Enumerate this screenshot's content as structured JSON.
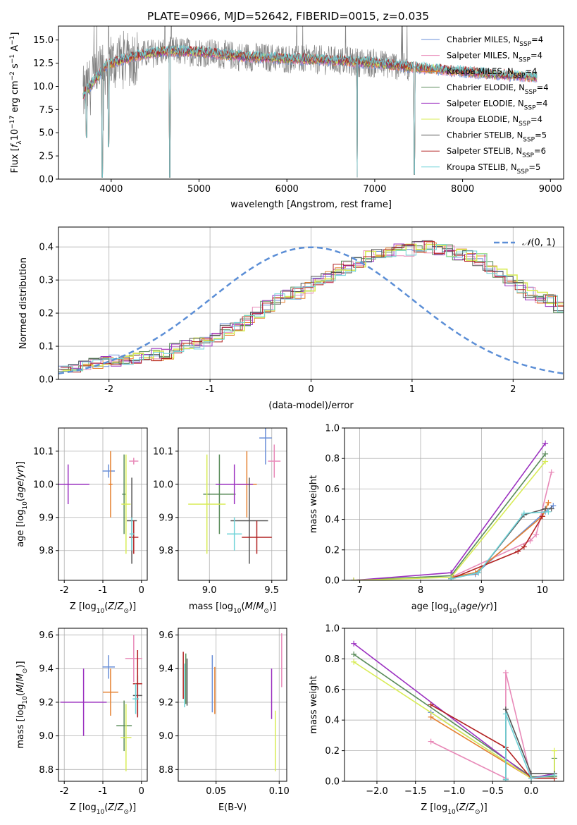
{
  "chart_data": [
    {
      "type": "line",
      "title": "PLATE=0966, MJD=52642, FIBERID=0015, z=0.035",
      "xlabel": "wavelength [Angstrom, rest frame]",
      "ylabel": "Flux [f_λ 10⁻¹⁷ erg cm⁻² s⁻¹ A⁻¹]",
      "xlim": [
        3400,
        9150
      ],
      "ylim": [
        0,
        16.5
      ],
      "xticks": [
        4000,
        5000,
        6000,
        7000,
        8000,
        9000
      ],
      "yticks": [
        0.0,
        2.5,
        5.0,
        7.5,
        10.0,
        12.5,
        15.0
      ],
      "ytick_labels": [
        "0.0",
        "2.5",
        "5.0",
        "7.5",
        "10.0",
        "12.5",
        "15.0"
      ],
      "legend_position": "upper-right",
      "series": [
        {
          "name": "Chabrier MILES, N_SSP=4",
          "color": "#6a8fd8"
        },
        {
          "name": "Salpeter MILES, N_SSP=4",
          "color": "#e889b8"
        },
        {
          "name": "Kroupa MILES, N_SSP=4",
          "color": "#e5802f"
        },
        {
          "name": "Chabrier ELODIE, N_SSP=4",
          "color": "#5a8c5a"
        },
        {
          "name": "Salpeter ELODIE, N_SSP=4",
          "color": "#9b30c0"
        },
        {
          "name": "Kroupa ELODIE, N_SSP=4",
          "color": "#d8ec55"
        },
        {
          "name": "Chabrier STELIB, N_SSP=5",
          "color": "#555555"
        },
        {
          "name": "Salpeter STELIB, N_SSP=6",
          "color": "#b22222"
        },
        {
          "name": "Kroupa STELIB, N_SSP=5",
          "color": "#6fd3d8"
        }
      ],
      "data_color": "#808080",
      "continuum_points": [
        [
          3680,
          9.0
        ],
        [
          3800,
          10.5
        ],
        [
          3950,
          12.3
        ],
        [
          4100,
          12.8
        ],
        [
          4300,
          13.3
        ],
        [
          4600,
          13.8
        ],
        [
          5000,
          13.7
        ],
        [
          5500,
          13.2
        ],
        [
          6000,
          13.0
        ],
        [
          6500,
          12.8
        ],
        [
          7000,
          12.5
        ],
        [
          7500,
          12.0
        ],
        [
          8000,
          11.6
        ],
        [
          8500,
          11.2
        ],
        [
          8850,
          11.0
        ]
      ],
      "data_noise_until": 7400,
      "dips": [
        [
          3720,
          4.5
        ],
        [
          3900,
          0.2
        ],
        [
          3970,
          3.5
        ],
        [
          4665,
          0.2
        ],
        [
          6800,
          0.2
        ],
        [
          7450,
          0.5
        ]
      ]
    },
    {
      "type": "line",
      "xlabel": "(data-model)/error",
      "ylabel": "Normed distribution",
      "xlim": [
        -2.5,
        2.5
      ],
      "ylim": [
        0,
        0.46
      ],
      "xticks": [
        -2,
        -1,
        0,
        1,
        2
      ],
      "yticks": [
        0.0,
        0.1,
        0.2,
        0.3,
        0.4
      ],
      "ytick_labels": [
        "0.0",
        "0.1",
        "0.2",
        "0.3",
        "0.4"
      ],
      "legend": "N(0,1)",
      "legend_position": "upper-right",
      "bin_width": 0.1,
      "hist_base": [
        0.03,
        0.035,
        0.04,
        0.045,
        0.05,
        0.055,
        0.06,
        0.065,
        0.07,
        0.075,
        0.08,
        0.09,
        0.1,
        0.11,
        0.12,
        0.13,
        0.15,
        0.165,
        0.18,
        0.2,
        0.22,
        0.24,
        0.25,
        0.26,
        0.28,
        0.3,
        0.31,
        0.33,
        0.34,
        0.35,
        0.37,
        0.38,
        0.38,
        0.39,
        0.39,
        0.4,
        0.4,
        0.39,
        0.39,
        0.38,
        0.37,
        0.36,
        0.34,
        0.32,
        0.3,
        0.28,
        0.26,
        0.25,
        0.24,
        0.22,
        0.2,
        0.18,
        0.16,
        0.15,
        0.13,
        0.12,
        0.11,
        0.1,
        0.09,
        0.08,
        0.07,
        0.06,
        0.055,
        0.05,
        0.045,
        0.04,
        0.04,
        0.035,
        0.03,
        0.03
      ]
    },
    {
      "type": "scatter",
      "xlabel": "Z [log₁₀(Z/Z⊙)]",
      "ylabel": "age  [log₁₀(age/yr)]",
      "xlim": [
        -2.15,
        0.15
      ],
      "ylim": [
        9.71,
        10.17
      ],
      "xticks": [
        -2,
        -1,
        0
      ],
      "yticks": [
        9.8,
        9.9,
        10.0,
        10.1
      ],
      "ytick_labels": [
        "9.8",
        "9.9",
        "10.0",
        "10.1"
      ],
      "points": [
        {
          "x": -0.85,
          "xerr": 0.16,
          "y": 10.04,
          "yerr": 0.02,
          "color": "#6a8fd8"
        },
        {
          "x": -0.2,
          "xerr": 0.12,
          "y": 10.07,
          "yerr": 0.01,
          "color": "#e889b8"
        },
        {
          "x": -0.8,
          "xerr": 0.05,
          "y": 10.0,
          "yerr": 0.1,
          "color": "#e5802f"
        },
        {
          "x": -0.45,
          "xerr": 0.05,
          "y": 9.97,
          "yerr": 0.12,
          "color": "#5a8c5a"
        },
        {
          "x": -1.9,
          "xerr": 0.55,
          "y": 10.0,
          "yerr": 0.06,
          "color": "#9b30c0"
        },
        {
          "x": -0.4,
          "xerr": 0.12,
          "y": 9.94,
          "yerr": 0.15,
          "color": "#d8ec55"
        },
        {
          "x": -0.25,
          "xerr": 0.13,
          "y": 9.89,
          "yerr": 0.13,
          "color": "#555555"
        },
        {
          "x": -0.2,
          "xerr": 0.12,
          "y": 9.84,
          "yerr": 0.05,
          "color": "#b22222"
        },
        {
          "x": -0.25,
          "xerr": 0.06,
          "y": 9.85,
          "yerr": 0.05,
          "color": "#6fd3d8"
        }
      ]
    },
    {
      "type": "scatter",
      "xlabel": "mass [log₁₀(M/M⊙)]",
      "xlim": [
        8.75,
        9.62
      ],
      "ylim": [
        9.71,
        10.17
      ],
      "xticks": [
        9.0,
        9.5
      ],
      "xtick_labels": [
        "9.0",
        "9.5"
      ],
      "yticks": [
        9.8,
        9.9,
        10.0,
        10.1
      ],
      "ytick_labels": [
        "9.8",
        "9.9",
        "10.0",
        "10.1"
      ],
      "points": [
        {
          "x": 9.45,
          "xerr": 0.05,
          "y": 10.14,
          "yerr": 0.08,
          "color": "#6a8fd8"
        },
        {
          "x": 9.52,
          "xerr": 0.05,
          "y": 10.07,
          "yerr": 0.05,
          "color": "#e889b8"
        },
        {
          "x": 9.3,
          "xerr": 0.08,
          "y": 10.0,
          "yerr": 0.1,
          "color": "#e5802f"
        },
        {
          "x": 9.08,
          "xerr": 0.13,
          "y": 9.97,
          "yerr": 0.12,
          "color": "#5a8c5a"
        },
        {
          "x": 9.2,
          "xerr": 0.15,
          "y": 10.0,
          "yerr": 0.06,
          "color": "#9b30c0"
        },
        {
          "x": 8.98,
          "xerr": 0.15,
          "y": 9.94,
          "yerr": 0.15,
          "color": "#d8ec55"
        },
        {
          "x": 9.32,
          "xerr": 0.15,
          "y": 9.89,
          "yerr": 0.13,
          "color": "#555555"
        },
        {
          "x": 9.38,
          "xerr": 0.12,
          "y": 9.84,
          "yerr": 0.05,
          "color": "#b22222"
        },
        {
          "x": 9.2,
          "xerr": 0.06,
          "y": 9.85,
          "yerr": 0.05,
          "color": "#6fd3d8"
        }
      ]
    },
    {
      "type": "line",
      "xlabel": "age  [log₁₀(age/yr)]",
      "ylabel": "mass weight",
      "xlim": [
        6.75,
        10.35
      ],
      "ylim": [
        0,
        1
      ],
      "xticks": [
        7,
        8,
        9,
        10
      ],
      "yticks": [
        0.0,
        0.2,
        0.4,
        0.6,
        0.8,
        1.0
      ],
      "ytick_labels": [
        "0.0",
        "0.2",
        "0.4",
        "0.6",
        "0.8",
        "1.0"
      ],
      "series": [
        {
          "color": "#6a8fd8",
          "x": [
            8.5,
            8.9,
            10.05,
            10.18
          ],
          "y": [
            0.02,
            0.04,
            0.45,
            0.49
          ]
        },
        {
          "color": "#e889b8",
          "x": [
            8.5,
            9.8,
            9.9,
            10.15
          ],
          "y": [
            0.02,
            0.26,
            0.3,
            0.71
          ]
        },
        {
          "color": "#e5802f",
          "x": [
            8.5,
            8.9,
            10.0,
            10.1
          ],
          "y": [
            0.02,
            0.05,
            0.42,
            0.51
          ]
        },
        {
          "color": "#5a8c5a",
          "x": [
            6.9,
            8.5,
            10.05
          ],
          "y": [
            0.0,
            0.03,
            0.83
          ]
        },
        {
          "color": "#9b30c0",
          "x": [
            6.9,
            8.5,
            10.05
          ],
          "y": [
            0.0,
            0.05,
            0.9
          ]
        },
        {
          "color": "#d8ec55",
          "x": [
            6.9,
            8.5,
            10.05
          ],
          "y": [
            0.0,
            0.02,
            0.78
          ]
        },
        {
          "color": "#555555",
          "x": [
            8.5,
            8.95,
            9.7,
            10.05,
            10.15
          ],
          "y": [
            0.01,
            0.05,
            0.43,
            0.47,
            0.47
          ]
        },
        {
          "color": "#b22222",
          "x": [
            8.5,
            9.6,
            9.7,
            10.0
          ],
          "y": [
            0.01,
            0.19,
            0.22,
            0.42
          ]
        },
        {
          "color": "#6fd3d8",
          "x": [
            8.5,
            8.95,
            9.7,
            10.1
          ],
          "y": [
            0.01,
            0.05,
            0.44,
            0.45
          ]
        }
      ]
    },
    {
      "type": "scatter",
      "xlabel": "Z [log₁₀(Z/Z⊙)]",
      "ylabel": "mass [log₁₀(M/M⊙)]",
      "xlim": [
        -2.15,
        0.15
      ],
      "ylim": [
        8.73,
        9.64
      ],
      "xticks": [
        -2,
        -1,
        0
      ],
      "yticks": [
        8.8,
        9.0,
        9.2,
        9.4,
        9.6
      ],
      "ytick_labels": [
        "8.8",
        "9.0",
        "9.2",
        "9.4",
        "9.6"
      ],
      "points": [
        {
          "x": -0.85,
          "xerr": 0.16,
          "y": 9.41,
          "yerr": 0.07,
          "color": "#6a8fd8"
        },
        {
          "x": -0.2,
          "xerr": 0.22,
          "y": 9.46,
          "yerr": 0.14,
          "color": "#e889b8"
        },
        {
          "x": -0.8,
          "xerr": 0.2,
          "y": 9.26,
          "yerr": 0.14,
          "color": "#e5802f"
        },
        {
          "x": -0.45,
          "xerr": 0.2,
          "y": 9.06,
          "yerr": 0.15,
          "color": "#5a8c5a"
        },
        {
          "x": -1.5,
          "xerr": 0.6,
          "y": 9.2,
          "yerr": 0.2,
          "color": "#9b30c0"
        },
        {
          "x": -0.4,
          "xerr": 0.14,
          "y": 8.99,
          "yerr": 0.2,
          "color": "#d8ec55"
        },
        {
          "x": -0.1,
          "xerr": 0.12,
          "y": 9.24,
          "yerr": 0.12,
          "color": "#555555"
        },
        {
          "x": -0.1,
          "xerr": 0.12,
          "y": 9.31,
          "yerr": 0.2,
          "color": "#b22222"
        },
        {
          "x": -0.15,
          "xerr": 0.08,
          "y": 9.22,
          "yerr": 0.09,
          "color": "#6fd3d8"
        }
      ]
    },
    {
      "type": "scatter",
      "xlabel": "E(B-V)",
      "xlim": [
        0.02,
        0.106
      ],
      "ylim": [
        8.73,
        9.64
      ],
      "xticks": [
        0.05,
        0.1
      ],
      "xtick_labels": [
        "0.05",
        "0.10"
      ],
      "yticks": [
        8.8,
        9.0,
        9.2,
        9.4,
        9.6
      ],
      "ytick_labels": [
        "8.8",
        "9.0",
        "9.2",
        "9.4",
        "9.6"
      ],
      "points": [
        {
          "x": 0.047,
          "y": 9.31,
          "yerr": 0.17,
          "color": "#6a8fd8"
        },
        {
          "x": 0.102,
          "y": 9.45,
          "yerr": 0.16,
          "color": "#e889b8"
        },
        {
          "x": 0.049,
          "y": 9.27,
          "yerr": 0.14,
          "color": "#e5802f"
        },
        {
          "x": 0.026,
          "y": 9.34,
          "yerr": 0.15,
          "color": "#5a8c5a"
        },
        {
          "x": 0.094,
          "y": 9.25,
          "yerr": 0.15,
          "color": "#9b30c0"
        },
        {
          "x": 0.097,
          "y": 8.97,
          "yerr": 0.18,
          "color": "#d8ec55"
        },
        {
          "x": 0.027,
          "y": 9.32,
          "yerr": 0.14,
          "color": "#555555"
        },
        {
          "x": 0.024,
          "y": 9.36,
          "yerr": 0.14,
          "color": "#b22222"
        },
        {
          "x": 0.025,
          "y": 9.3,
          "yerr": 0.13,
          "color": "#6fd3d8"
        }
      ]
    },
    {
      "type": "line",
      "xlabel": "Z [log₁₀(Z/Z⊙)]",
      "ylabel": "mass weight",
      "xlim": [
        -2.42,
        0.42
      ],
      "ylim": [
        0,
        1
      ],
      "xticks": [
        -2.0,
        -1.5,
        -1.0,
        -0.5,
        0.0
      ],
      "xtick_labels": [
        "−2.0",
        "−1.5",
        "−1.0",
        "−0.5",
        "0.0"
      ],
      "yticks": [
        0.0,
        0.2,
        0.4,
        0.6,
        0.8,
        1.0
      ],
      "ytick_labels": [
        "0.0",
        "0.2",
        "0.4",
        "0.6",
        "0.8",
        "1.0"
      ],
      "series": [
        {
          "color": "#6a8fd8",
          "x": [
            -1.3,
            0.0,
            0.3
          ],
          "y": [
            0.45,
            0.02,
            0.05
          ]
        },
        {
          "color": "#e889b8",
          "x": [
            -1.3,
            -0.33,
            -0.33,
            0.0,
            0.3
          ],
          "y": [
            0.26,
            0.02,
            0.71,
            0.02,
            0.02
          ]
        },
        {
          "color": "#e5802f",
          "x": [
            -1.3,
            0.0,
            0.3
          ],
          "y": [
            0.42,
            0.02,
            0.05
          ]
        },
        {
          "color": "#5a8c5a",
          "x": [
            -2.3,
            0.0,
            0.3,
            0.3
          ],
          "y": [
            0.83,
            0.03,
            0.03,
            0.15
          ]
        },
        {
          "color": "#9b30c0",
          "x": [
            -2.3,
            0.0,
            0.3
          ],
          "y": [
            0.9,
            0.02,
            0.05
          ]
        },
        {
          "color": "#d8ec55",
          "x": [
            -2.3,
            0.0,
            0.3,
            0.3
          ],
          "y": [
            0.78,
            0.02,
            0.02,
            0.2
          ]
        },
        {
          "color": "#555555",
          "x": [
            -0.33,
            -0.33,
            0.0,
            0.3
          ],
          "y": [
            0.01,
            0.47,
            0.05,
            0.05
          ]
        },
        {
          "color": "#b22222",
          "x": [
            -1.3,
            -0.33,
            0.0,
            0.3
          ],
          "y": [
            0.5,
            0.22,
            0.02,
            0.02
          ]
        },
        {
          "color": "#6fd3d8",
          "x": [
            -0.33,
            -0.33,
            0.0,
            0.3
          ],
          "y": [
            0.01,
            0.44,
            0.02,
            0.04
          ]
        }
      ]
    }
  ]
}
